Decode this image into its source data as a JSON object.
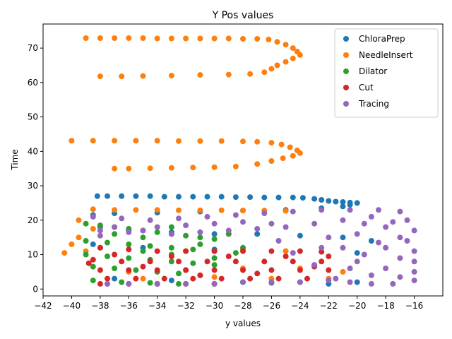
{
  "chart_data": {
    "type": "scatter",
    "title": "Y Pos values",
    "xlabel": "y values",
    "ylabel": "Time",
    "xlim": [
      -42,
      -14
    ],
    "ylim": [
      -2,
      77
    ],
    "xticks": [
      -42,
      -40,
      -38,
      -36,
      -34,
      -32,
      -30,
      -28,
      -26,
      -24,
      -22,
      -20,
      -18,
      -16
    ],
    "yticks": [
      0,
      10,
      20,
      30,
      40,
      50,
      60,
      70
    ],
    "grid": false,
    "legend_position": "top-right",
    "series": [
      {
        "name": "ChloraPrep",
        "color": "#1f77b4",
        "points": [
          [
            -38.2,
            27.0
          ],
          [
            -37.5,
            27.0
          ],
          [
            -36.5,
            27.0
          ],
          [
            -35.5,
            27.0
          ],
          [
            -34.5,
            27.0
          ],
          [
            -33.5,
            26.8
          ],
          [
            -32.5,
            26.8
          ],
          [
            -31.5,
            26.8
          ],
          [
            -30.5,
            26.8
          ],
          [
            -29.5,
            26.8
          ],
          [
            -28.5,
            26.7
          ],
          [
            -27.5,
            26.7
          ],
          [
            -26.5,
            26.6
          ],
          [
            -25.5,
            26.6
          ],
          [
            -24.5,
            26.6
          ],
          [
            -23.8,
            26.5
          ],
          [
            -23.0,
            26.2
          ],
          [
            -22.5,
            25.9
          ],
          [
            -22.0,
            25.6
          ],
          [
            -21.5,
            25.4
          ],
          [
            -21.0,
            25.3
          ],
          [
            -20.5,
            25.1
          ],
          [
            -20.0,
            25.0
          ],
          [
            -20.5,
            24.5
          ],
          [
            -21.0,
            24.0
          ],
          [
            -22.5,
            23.5
          ],
          [
            -25.0,
            23.0
          ],
          [
            -28.0,
            22.8
          ],
          [
            -31.0,
            22.5
          ],
          [
            -34.0,
            22.2
          ],
          [
            -37.0,
            22.0
          ],
          [
            -38.5,
            21.5
          ],
          [
            -38.0,
            18.0
          ],
          [
            -36.0,
            17.0
          ],
          [
            -33.0,
            16.5
          ],
          [
            -30.0,
            16.0
          ],
          [
            -27.0,
            16.0
          ],
          [
            -24.0,
            15.5
          ],
          [
            -21.0,
            15.0
          ],
          [
            -19.0,
            14.0
          ],
          [
            -38.5,
            13.0
          ],
          [
            -35.0,
            12.0
          ],
          [
            -30.0,
            11.5
          ],
          [
            -25.0,
            11.0
          ],
          [
            -20.0,
            10.5
          ],
          [
            -37.0,
            3.0
          ],
          [
            -33.0,
            2.5
          ],
          [
            -28.0,
            2.0
          ],
          [
            -24.0,
            2.0
          ],
          [
            -20.0,
            2.0
          ],
          [
            -37.5,
            1.5
          ],
          [
            -34.0,
            1.5
          ],
          [
            -30.0,
            1.5
          ],
          [
            -26.0,
            1.8
          ],
          [
            -22.0,
            1.5
          ]
        ]
      },
      {
        "name": "NeedleInsert",
        "color": "#ff7f0e",
        "points": [
          [
            -39.0,
            72.9
          ],
          [
            -38.0,
            72.9
          ],
          [
            -37.0,
            72.9
          ],
          [
            -36.0,
            72.9
          ],
          [
            -35.0,
            72.9
          ],
          [
            -34.0,
            72.8
          ],
          [
            -33.0,
            72.8
          ],
          [
            -32.0,
            72.8
          ],
          [
            -31.0,
            72.8
          ],
          [
            -30.0,
            72.8
          ],
          [
            -29.0,
            72.8
          ],
          [
            -28.0,
            72.7
          ],
          [
            -27.0,
            72.7
          ],
          [
            -26.2,
            72.5
          ],
          [
            -25.6,
            71.8
          ],
          [
            -25.0,
            71.0
          ],
          [
            -24.5,
            70.0
          ],
          [
            -24.2,
            69.0
          ],
          [
            -24.0,
            68.0
          ],
          [
            -24.5,
            67.0
          ],
          [
            -25.0,
            66.0
          ],
          [
            -25.6,
            65.0
          ],
          [
            -26.0,
            64.0
          ],
          [
            -26.5,
            63.0
          ],
          [
            -27.5,
            62.5
          ],
          [
            -29.0,
            62.3
          ],
          [
            -31.0,
            62.2
          ],
          [
            -33.0,
            62.0
          ],
          [
            -35.0,
            61.9
          ],
          [
            -36.5,
            61.8
          ],
          [
            -38.0,
            61.8
          ],
          [
            -40.0,
            43.1
          ],
          [
            -38.5,
            43.1
          ],
          [
            -37.0,
            43.1
          ],
          [
            -35.5,
            43.1
          ],
          [
            -34.0,
            43.1
          ],
          [
            -32.5,
            43.0
          ],
          [
            -31.0,
            43.0
          ],
          [
            -29.5,
            43.0
          ],
          [
            -28.0,
            42.9
          ],
          [
            -27.0,
            42.8
          ],
          [
            -26.0,
            42.5
          ],
          [
            -25.3,
            42.0
          ],
          [
            -24.7,
            41.2
          ],
          [
            -24.2,
            40.3
          ],
          [
            -24.0,
            39.5
          ],
          [
            -24.5,
            38.7
          ],
          [
            -25.2,
            38.0
          ],
          [
            -26.0,
            37.2
          ],
          [
            -27.0,
            36.3
          ],
          [
            -28.5,
            35.6
          ],
          [
            -30.0,
            35.4
          ],
          [
            -31.5,
            35.3
          ],
          [
            -33.0,
            35.2
          ],
          [
            -34.5,
            35.1
          ],
          [
            -36.0,
            35.0
          ],
          [
            -37.0,
            35.0
          ],
          [
            -38.5,
            23.2
          ],
          [
            -37.0,
            23.0
          ],
          [
            -35.5,
            23.0
          ],
          [
            -34.0,
            23.0
          ],
          [
            -32.5,
            22.9
          ],
          [
            -31.0,
            22.9
          ],
          [
            -29.5,
            22.9
          ],
          [
            -28.0,
            22.8
          ],
          [
            -26.5,
            22.8
          ],
          [
            -25.0,
            22.7
          ],
          [
            -39.5,
            20.0
          ],
          [
            -38.5,
            17.5
          ],
          [
            -39.5,
            15.0
          ],
          [
            -40.0,
            13.0
          ],
          [
            -40.5,
            10.5
          ],
          [
            -39.0,
            11.0
          ],
          [
            -36.0,
            11.5
          ],
          [
            -32.0,
            11.0
          ],
          [
            -28.0,
            11.5
          ],
          [
            -25.0,
            11.0
          ],
          [
            -36.0,
            5.0
          ],
          [
            -32.0,
            5.5
          ],
          [
            -28.0,
            6.0
          ],
          [
            -24.0,
            6.0
          ],
          [
            -21.0,
            5.0
          ],
          [
            -35.0,
            3.0
          ],
          [
            -30.0,
            3.5
          ],
          [
            -26.0,
            3.0
          ],
          [
            -22.0,
            3.0
          ]
        ]
      },
      {
        "name": "Dilator",
        "color": "#2ca02c",
        "points": [
          [
            -39.0,
            19.0
          ],
          [
            -38.0,
            18.5
          ],
          [
            -37.0,
            18.0
          ],
          [
            -36.0,
            17.5
          ],
          [
            -35.0,
            17.0
          ],
          [
            -34.0,
            16.5
          ],
          [
            -33.0,
            16.0
          ],
          [
            -32.0,
            15.5
          ],
          [
            -31.0,
            15.0
          ],
          [
            -30.0,
            14.5
          ],
          [
            -39.0,
            14.0
          ],
          [
            -37.5,
            13.5
          ],
          [
            -36.0,
            13.0
          ],
          [
            -34.5,
            12.5
          ],
          [
            -33.0,
            12.0
          ],
          [
            -31.5,
            11.5
          ],
          [
            -30.0,
            11.0
          ],
          [
            -28.5,
            10.5
          ],
          [
            -39.0,
            10.0
          ],
          [
            -37.5,
            9.5
          ],
          [
            -36.0,
            9.0
          ],
          [
            -34.5,
            8.5
          ],
          [
            -33.0,
            8.0
          ],
          [
            -31.5,
            7.5
          ],
          [
            -30.0,
            7.0
          ],
          [
            -38.5,
            6.5
          ],
          [
            -37.0,
            6.0
          ],
          [
            -35.5,
            5.5
          ],
          [
            -34.0,
            5.0
          ],
          [
            -32.5,
            4.5
          ],
          [
            -31.0,
            4.0
          ],
          [
            -38.5,
            2.5
          ],
          [
            -36.5,
            2.0
          ],
          [
            -34.5,
            1.8
          ],
          [
            -32.5,
            1.5
          ],
          [
            -38.0,
            12.0
          ],
          [
            -35.0,
            15.0
          ],
          [
            -33.0,
            18.0
          ],
          [
            -31.0,
            13.0
          ],
          [
            -29.0,
            16.0
          ],
          [
            -37.0,
            16.0
          ],
          [
            -35.0,
            11.0
          ],
          [
            -33.0,
            10.0
          ],
          [
            -30.0,
            9.0
          ],
          [
            -28.0,
            12.0
          ]
        ]
      },
      {
        "name": "Cut",
        "color": "#d62728",
        "points": [
          [
            -38.0,
            12.0
          ],
          [
            -36.0,
            11.5
          ],
          [
            -34.0,
            11.0
          ],
          [
            -32.0,
            11.0
          ],
          [
            -30.0,
            11.0
          ],
          [
            -28.0,
            11.0
          ],
          [
            -26.0,
            11.0
          ],
          [
            -24.0,
            11.0
          ],
          [
            -22.5,
            10.8
          ],
          [
            -38.5,
            8.5
          ],
          [
            -36.5,
            8.0
          ],
          [
            -34.5,
            8.0
          ],
          [
            -32.5,
            8.0
          ],
          [
            -30.5,
            8.0
          ],
          [
            -28.5,
            8.0
          ],
          [
            -26.5,
            8.0
          ],
          [
            -24.5,
            8.0
          ],
          [
            -22.5,
            8.0
          ],
          [
            -38.0,
            5.5
          ],
          [
            -36.0,
            5.5
          ],
          [
            -34.0,
            5.5
          ],
          [
            -32.0,
            5.5
          ],
          [
            -30.0,
            5.5
          ],
          [
            -28.0,
            5.5
          ],
          [
            -26.0,
            5.5
          ],
          [
            -24.0,
            5.5
          ],
          [
            -22.0,
            5.5
          ],
          [
            -37.5,
            3.0
          ],
          [
            -35.5,
            3.0
          ],
          [
            -33.5,
            3.0
          ],
          [
            -31.5,
            3.0
          ],
          [
            -29.5,
            3.0
          ],
          [
            -27.5,
            3.0
          ],
          [
            -25.5,
            3.0
          ],
          [
            -23.5,
            3.0
          ],
          [
            -38.0,
            1.5
          ],
          [
            -36.0,
            1.5
          ],
          [
            -34.0,
            1.5
          ],
          [
            -32.0,
            1.5
          ],
          [
            -30.0,
            1.5
          ],
          [
            -38.8,
            7.5
          ],
          [
            -37.0,
            10.0
          ],
          [
            -35.0,
            6.5
          ],
          [
            -33.0,
            9.5
          ],
          [
            -31.0,
            4.0
          ],
          [
            -29.0,
            9.5
          ],
          [
            -27.0,
            4.5
          ],
          [
            -25.0,
            9.5
          ],
          [
            -23.0,
            6.5
          ],
          [
            -22.0,
            9.5
          ]
        ]
      },
      {
        "name": "Tracing",
        "color": "#9467bd",
        "points": [
          [
            -38.5,
            21.0
          ],
          [
            -36.5,
            20.5
          ],
          [
            -34.5,
            20.0
          ],
          [
            -32.5,
            20.5
          ],
          [
            -30.5,
            21.0
          ],
          [
            -28.5,
            21.5
          ],
          [
            -26.5,
            22.0
          ],
          [
            -24.5,
            22.5
          ],
          [
            -22.5,
            23.0
          ],
          [
            -20.5,
            23.0
          ],
          [
            -18.5,
            23.0
          ],
          [
            -17.0,
            22.5
          ],
          [
            -16.5,
            20.0
          ],
          [
            -16.0,
            17.0
          ],
          [
            -16.5,
            14.0
          ],
          [
            -16.0,
            11.0
          ],
          [
            -16.0,
            8.0
          ],
          [
            -16.0,
            5.0
          ],
          [
            -16.0,
            2.5
          ],
          [
            -17.5,
            1.5
          ],
          [
            -19.0,
            1.5
          ],
          [
            -20.5,
            2.0
          ],
          [
            -22.0,
            2.5
          ],
          [
            -24.0,
            2.0
          ],
          [
            -26.0,
            2.0
          ],
          [
            -28.0,
            2.0
          ],
          [
            -30.0,
            1.5
          ],
          [
            -32.0,
            1.5
          ],
          [
            -34.0,
            1.5
          ],
          [
            -36.0,
            1.5
          ],
          [
            -37.5,
            1.5
          ],
          [
            -37.0,
            18.0
          ],
          [
            -35.0,
            17.0
          ],
          [
            -33.0,
            16.0
          ],
          [
            -31.0,
            16.5
          ],
          [
            -29.0,
            17.0
          ],
          [
            -27.0,
            17.5
          ],
          [
            -25.0,
            18.0
          ],
          [
            -23.0,
            19.0
          ],
          [
            -21.0,
            20.0
          ],
          [
            -19.0,
            21.0
          ],
          [
            -18.0,
            18.0
          ],
          [
            -17.0,
            15.0
          ],
          [
            -18.0,
            12.0
          ],
          [
            -17.0,
            9.0
          ],
          [
            -18.0,
            6.0
          ],
          [
            -17.0,
            3.5
          ],
          [
            -19.0,
            4.0
          ],
          [
            -20.0,
            8.0
          ],
          [
            -21.0,
            12.0
          ],
          [
            -20.0,
            16.0
          ],
          [
            -19.5,
            19.0
          ],
          [
            -22.0,
            15.0
          ],
          [
            -22.5,
            12.0
          ],
          [
            -23.0,
            7.0
          ],
          [
            -24.5,
            10.5
          ],
          [
            -25.5,
            14.0
          ],
          [
            -26.0,
            19.0
          ],
          [
            -28.0,
            19.5
          ],
          [
            -30.0,
            19.0
          ],
          [
            -32.0,
            18.5
          ],
          [
            -34.0,
            18.0
          ],
          [
            -36.0,
            16.5
          ],
          [
            -38.0,
            15.5
          ],
          [
            -38.0,
            17.0
          ],
          [
            -17.5,
            19.5
          ],
          [
            -18.5,
            13.5
          ],
          [
            -19.5,
            10.0
          ],
          [
            -20.5,
            6.0
          ],
          [
            -21.5,
            3.0
          ]
        ]
      }
    ]
  }
}
